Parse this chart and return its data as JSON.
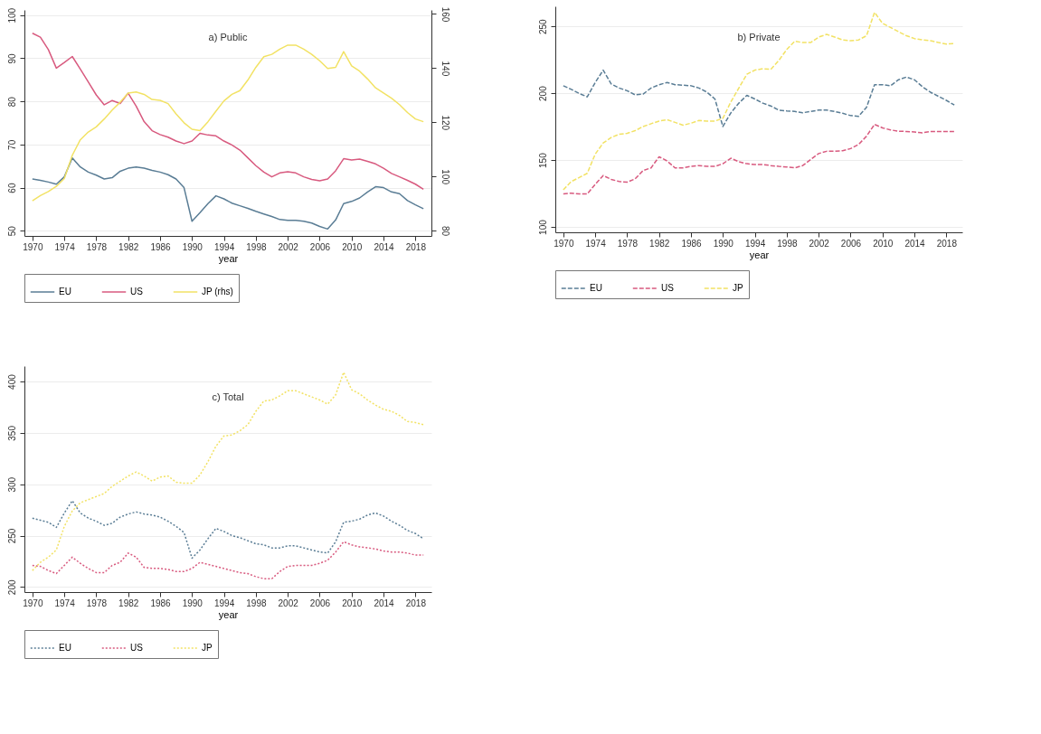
{
  "chart_data": [
    {
      "type": "line",
      "title": "a) Public",
      "xlabel": "year",
      "xlim": [
        1969,
        2020
      ],
      "xticks": [
        1970,
        1974,
        1978,
        1982,
        1986,
        1990,
        1994,
        1998,
        2002,
        2006,
        2010,
        2014,
        2018
      ],
      "ylim": [
        48.8,
        101.2
      ],
      "yticks": [
        50,
        60,
        70,
        80,
        90,
        100
      ],
      "y2lim": [
        78,
        161.5
      ],
      "y2ticks": [
        80,
        100,
        120,
        140,
        160
      ],
      "grid": "y",
      "legend": "bottom",
      "line_style": "solid",
      "x": [
        1970,
        1971,
        1972,
        1973,
        1974,
        1975,
        1976,
        1977,
        1978,
        1979,
        1980,
        1981,
        1982,
        1983,
        1984,
        1985,
        1986,
        1987,
        1988,
        1989,
        1990,
        1991,
        1992,
        1993,
        1994,
        1995,
        1996,
        1997,
        1998,
        1999,
        2000,
        2001,
        2002,
        2003,
        2004,
        2005,
        2006,
        2007,
        2008,
        2009,
        2010,
        2011,
        2012,
        2013,
        2014,
        2015,
        2016,
        2017,
        2018,
        2019
      ],
      "series": [
        {
          "name": "EU",
          "color": "#5a7d95",
          "values": [
            62.0,
            61.7,
            61.3,
            60.8,
            62.5,
            66.9,
            64.8,
            63.6,
            62.9,
            62.0,
            62.3,
            63.8,
            64.5,
            64.8,
            64.5,
            64.0,
            63.6,
            63.0,
            62.0,
            60.0,
            52.2,
            54.2,
            56.3,
            58.1,
            57.4,
            56.4,
            55.8,
            55.2,
            54.5,
            53.9,
            53.3,
            52.6,
            52.4,
            52.4,
            52.2,
            51.8,
            51.0,
            50.4,
            52.5,
            56.3,
            56.8,
            57.6,
            59.0,
            60.2,
            60.0,
            59.0,
            58.6,
            57.0,
            56.0,
            55.1
          ]
        },
        {
          "name": "US",
          "color": "#d85a7f",
          "values": [
            95.8,
            94.9,
            92.0,
            87.7,
            89.0,
            90.4,
            87.5,
            84.5,
            81.5,
            79.2,
            80.2,
            79.5,
            81.9,
            78.9,
            75.3,
            73.2,
            72.3,
            71.7,
            70.8,
            70.2,
            70.8,
            72.6,
            72.2,
            72.0,
            70.8,
            69.9,
            68.7,
            66.9,
            65.1,
            63.6,
            62.5,
            63.4,
            63.7,
            63.4,
            62.5,
            61.9,
            61.6,
            62.0,
            63.9,
            66.7,
            66.4,
            66.6,
            66.1,
            65.5,
            64.5,
            63.3,
            62.5,
            61.7,
            60.8,
            59.6
          ]
        },
        {
          "name": "JP (rhs)",
          "color": "#f2e264",
          "axis": "y2",
          "values": [
            91.0,
            92.9,
            94.4,
            96.3,
            99.2,
            107.8,
            113.5,
            116.4,
            118.3,
            121.2,
            124.5,
            127.4,
            130.8,
            131.2,
            130.3,
            128.4,
            128.1,
            126.9,
            123.1,
            119.8,
            117.4,
            116.9,
            120.2,
            124.1,
            127.9,
            130.3,
            131.7,
            135.6,
            140.3,
            144.2,
            145.1,
            147.0,
            148.5,
            148.5,
            147.0,
            145.1,
            142.7,
            139.9,
            140.3,
            146.1,
            140.8,
            138.9,
            136.0,
            132.7,
            130.8,
            128.9,
            126.5,
            123.6,
            121.2,
            120.2
          ]
        }
      ]
    },
    {
      "type": "line",
      "title": "b) Private",
      "xlabel": "year",
      "xlim": [
        1969,
        2020
      ],
      "xticks": [
        1970,
        1974,
        1978,
        1982,
        1986,
        1990,
        1994,
        1998,
        2002,
        2006,
        2010,
        2014,
        2018
      ],
      "ylim": [
        96,
        265
      ],
      "yticks": [
        100,
        150,
        200,
        250
      ],
      "grid": "y",
      "legend": "bottom",
      "line_style": "dashed",
      "x": [
        1970,
        1971,
        1972,
        1973,
        1974,
        1975,
        1976,
        1977,
        1978,
        1979,
        1980,
        1981,
        1982,
        1983,
        1984,
        1985,
        1986,
        1987,
        1988,
        1989,
        1990,
        1991,
        1992,
        1993,
        1994,
        1995,
        1996,
        1997,
        1998,
        1999,
        2000,
        2001,
        2002,
        2003,
        2004,
        2005,
        2006,
        2007,
        2008,
        2009,
        2010,
        2011,
        2012,
        2013,
        2014,
        2015,
        2016,
        2017,
        2018,
        2019
      ],
      "series": [
        {
          "name": "EU",
          "color": "#5a7d95",
          "values": [
            205.6,
            202.9,
            199.8,
            197.3,
            208.0,
            217.3,
            207.0,
            203.9,
            201.9,
            198.8,
            199.4,
            203.9,
            206.4,
            208.0,
            206.4,
            206.0,
            205.6,
            203.9,
            200.8,
            195.7,
            175.1,
            185.4,
            192.6,
            198.4,
            195.7,
            192.6,
            190.5,
            187.4,
            186.8,
            186.4,
            185.4,
            186.4,
            187.4,
            187.4,
            186.4,
            185.0,
            183.3,
            182.7,
            189.5,
            206.4,
            206.4,
            205.6,
            210.1,
            212.1,
            210.1,
            204.9,
            200.8,
            197.7,
            194.7,
            191.2
          ]
        },
        {
          "name": "US",
          "color": "#d85a7f",
          "values": [
            124.7,
            125.3,
            124.7,
            124.7,
            131.9,
            138.5,
            135.6,
            134.0,
            133.5,
            136.0,
            142.2,
            144.2,
            152.5,
            149.4,
            144.2,
            144.2,
            145.3,
            145.9,
            145.3,
            145.3,
            147.3,
            151.4,
            148.8,
            147.3,
            146.7,
            146.7,
            145.9,
            145.3,
            144.9,
            144.2,
            145.9,
            150.4,
            154.9,
            156.6,
            156.6,
            157.0,
            158.6,
            161.7,
            167.9,
            176.7,
            174.1,
            172.6,
            171.6,
            171.4,
            171.0,
            170.4,
            171.4,
            171.4,
            171.4,
            171.4
          ]
        },
        {
          "name": "JP",
          "color": "#f2e264",
          "values": [
            127.8,
            134.0,
            137.0,
            140.1,
            154.5,
            162.8,
            166.9,
            169.3,
            170.0,
            172.0,
            175.1,
            177.2,
            179.2,
            180.2,
            178.2,
            176.1,
            177.6,
            179.6,
            179.2,
            179.2,
            181.3,
            193.6,
            203.9,
            214.2,
            217.3,
            218.3,
            217.9,
            224.5,
            232.7,
            238.9,
            237.9,
            237.9,
            242.0,
            244.0,
            242.0,
            239.9,
            239.3,
            239.9,
            243.0,
            260.5,
            252.3,
            249.2,
            246.1,
            243.0,
            240.9,
            239.9,
            239.3,
            237.9,
            236.8,
            237.2
          ]
        }
      ]
    },
    {
      "type": "line",
      "title": "c) Total",
      "xlabel": "year",
      "xlim": [
        1969,
        2020
      ],
      "xticks": [
        1970,
        1974,
        1978,
        1982,
        1986,
        1990,
        1994,
        1998,
        2002,
        2006,
        2010,
        2014,
        2018
      ],
      "ylim": [
        195,
        415
      ],
      "yticks": [
        200,
        250,
        300,
        350,
        400
      ],
      "grid": "y",
      "legend": "bottom",
      "line_style": "dotted",
      "x": [
        1970,
        1971,
        1972,
        1973,
        1974,
        1975,
        1976,
        1977,
        1978,
        1979,
        1980,
        1981,
        1982,
        1983,
        1984,
        1985,
        1986,
        1987,
        1988,
        1989,
        1990,
        1991,
        1992,
        1993,
        1994,
        1995,
        1996,
        1997,
        1998,
        1999,
        2000,
        2001,
        2002,
        2003,
        2004,
        2005,
        2006,
        2007,
        2008,
        2009,
        2010,
        2011,
        2012,
        2013,
        2014,
        2015,
        2016,
        2017,
        2018,
        2019
      ],
      "series": [
        {
          "name": "EU",
          "color": "#5a7d95",
          "values": [
            267,
            265,
            263,
            258,
            272,
            284,
            272,
            267,
            264,
            260,
            262,
            268,
            271,
            273,
            271,
            270,
            268,
            264,
            259,
            253,
            228,
            236,
            247,
            257,
            254,
            250,
            248,
            245,
            242,
            241,
            238,
            238,
            240,
            240,
            238,
            236,
            234,
            233,
            244,
            263,
            264,
            266,
            270,
            272,
            269,
            264,
            260,
            255,
            252,
            247
          ]
        },
        {
          "name": "US",
          "color": "#d85a7f",
          "values": [
            221,
            220,
            216,
            213,
            221,
            229,
            223,
            218,
            214,
            214,
            221,
            224,
            233,
            229,
            219,
            218,
            218,
            217,
            215,
            215,
            218,
            224,
            222,
            220,
            218,
            216,
            214,
            213,
            210,
            208,
            208,
            215,
            220,
            221,
            221,
            221,
            223,
            226,
            234,
            244,
            241,
            239,
            238,
            237,
            235,
            234,
            234,
            233,
            231,
            231
          ]
        },
        {
          "name": "JP",
          "color": "#f2e264",
          "values": [
            216,
            224,
            229,
            236,
            259,
            274,
            282,
            285,
            288,
            291,
            298,
            303,
            308,
            312,
            308,
            303,
            307,
            308,
            302,
            301,
            301,
            309,
            322,
            337,
            347,
            348,
            352,
            358,
            371,
            381,
            382,
            386,
            391,
            391,
            388,
            385,
            382,
            378,
            387,
            409,
            392,
            388,
            382,
            377,
            373,
            371,
            367,
            361,
            360,
            358
          ]
        }
      ]
    }
  ]
}
